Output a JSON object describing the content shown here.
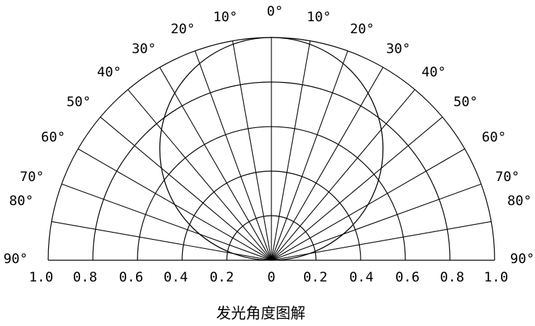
{
  "diagram": {
    "type": "polar-half-plot",
    "radial_ticks": [
      "1.0",
      "0.8",
      "0.6",
      "0.4",
      "0.2",
      "0",
      "0.2",
      "0.4",
      "0.6",
      "0.8",
      "1.0"
    ],
    "radial_values": [
      0.2,
      0.4,
      0.6,
      0.8,
      1.0
    ],
    "angle_step_deg": 10,
    "angle_labels_left": [
      "0°",
      "10°",
      "20°",
      "30°",
      "40°",
      "50°",
      "60°",
      "70°",
      "80°",
      "90°"
    ],
    "angle_labels_right": [
      "10°",
      "20°",
      "30°",
      "40°",
      "50°",
      "60°",
      "70°",
      "80°",
      "90°"
    ],
    "curve": "circle tangent at origin, reaching 1.0 at 0°",
    "caption": "发光角度图解",
    "colors": {
      "line": "#000000",
      "background": "#ffffff"
    }
  }
}
